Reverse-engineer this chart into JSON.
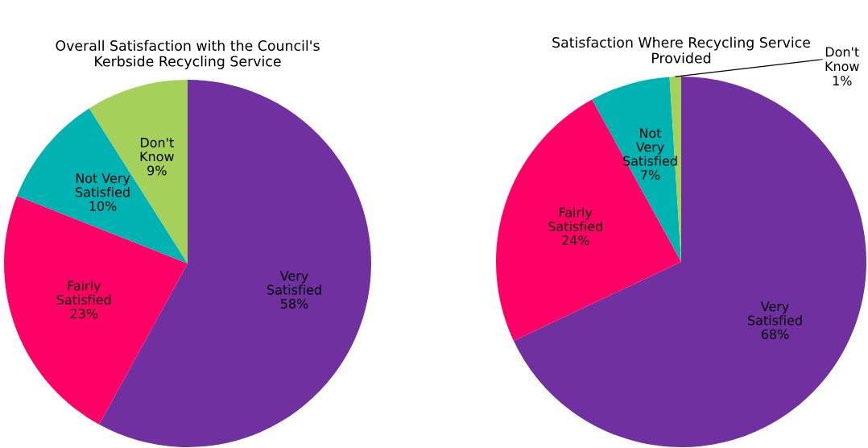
{
  "chart_data": [
    {
      "type": "pie",
      "title": "Overall Satisfaction with the Council's\nKerbside Recycling Service",
      "categories": [
        "Very\nSatisfied",
        "Fairly\nSatisfied",
        "Not Very\nSatisfied",
        "Don't\nKnow"
      ],
      "values": [
        58,
        23,
        10,
        9
      ],
      "value_labels": [
        "58%",
        "23%",
        "10%",
        "9%"
      ],
      "colors": [
        "#7030a0",
        "#ff0066",
        "#00b3b3",
        "#a5d05a"
      ]
    },
    {
      "type": "pie",
      "title": "Satisfaction Where Recycling Service\nProvided",
      "categories": [
        "Very\nSatisfied",
        "Fairly\nSatisfied",
        "Not\nVery\nSatisfied",
        "Don't\nKnow"
      ],
      "values": [
        68,
        24,
        7,
        1
      ],
      "value_labels": [
        "68%",
        "24%",
        "7%",
        "1%"
      ],
      "colors": [
        "#7030a0",
        "#ff0066",
        "#00b3b3",
        "#a5d05a"
      ]
    }
  ]
}
